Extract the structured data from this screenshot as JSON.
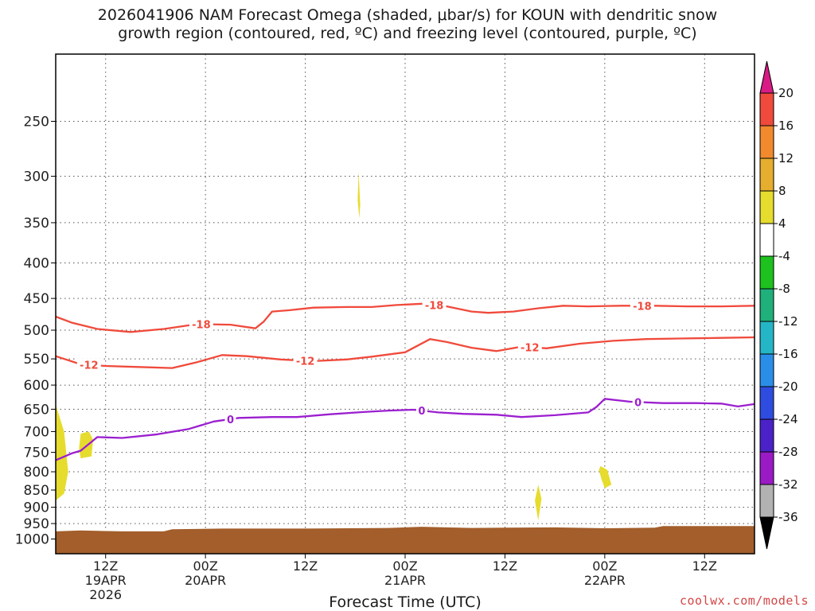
{
  "title": {
    "line1": "2026041906 NAM Forecast Omega (shaded, μbar/s) for KOUN with dendritic snow",
    "line2": "growth region (contoured, red, ºC) and freezing level (contoured, purple, ºC)"
  },
  "xlabel": "Forecast Time (UTC)",
  "credit": "coolwx.com/models",
  "chart_data": {
    "type": "area",
    "x_unit": "forecast hour from 2026041906",
    "xlim": [
      0,
      84
    ],
    "y_unit": "hPa",
    "ylim": [
      1050,
      200
    ],
    "y_scale": "log",
    "y_ticks": [
      250,
      300,
      350,
      400,
      450,
      500,
      550,
      600,
      650,
      700,
      750,
      800,
      850,
      900,
      950,
      1000
    ],
    "x_ticks": [
      {
        "x": 6,
        "label": "12Z",
        "sub1": "19APR",
        "sub2": "2026"
      },
      {
        "x": 18,
        "label": "00Z",
        "sub1": "20APR",
        "sub2": ""
      },
      {
        "x": 30,
        "label": "12Z",
        "sub1": "",
        "sub2": ""
      },
      {
        "x": 42,
        "label": "00Z",
        "sub1": "21APR",
        "sub2": ""
      },
      {
        "x": 54,
        "label": "12Z",
        "sub1": "",
        "sub2": ""
      },
      {
        "x": 66,
        "label": "00Z",
        "sub1": "22APR",
        "sub2": ""
      },
      {
        "x": 78,
        "label": "12Z",
        "sub1": "",
        "sub2": ""
      }
    ],
    "grid": true,
    "series": [
      {
        "name": "-18",
        "color": "#f04a3c",
        "label_positions": [
          17.5,
          45.5,
          70.5
        ],
        "points": [
          [
            0,
            478
          ],
          [
            2,
            488
          ],
          [
            5,
            498
          ],
          [
            9,
            503
          ],
          [
            13,
            498
          ],
          [
            17,
            490
          ],
          [
            21,
            491
          ],
          [
            24,
            497
          ],
          [
            25,
            486
          ],
          [
            26,
            470
          ],
          [
            28,
            468
          ],
          [
            31,
            464
          ],
          [
            35,
            463
          ],
          [
            38,
            463
          ],
          [
            41,
            460
          ],
          [
            44,
            458
          ],
          [
            47,
            462
          ],
          [
            50,
            470
          ],
          [
            52,
            472
          ],
          [
            55,
            470
          ],
          [
            58,
            465
          ],
          [
            61,
            461
          ],
          [
            64,
            462
          ],
          [
            68,
            461
          ],
          [
            72,
            461
          ],
          [
            76,
            462
          ],
          [
            80,
            462
          ],
          [
            84,
            461
          ]
        ]
      },
      {
        "name": "-12",
        "color": "#f04a3c",
        "label_positions": [
          4,
          30,
          57
        ],
        "points": [
          [
            0,
            545
          ],
          [
            3,
            560
          ],
          [
            6,
            563
          ],
          [
            10,
            565
          ],
          [
            14,
            567
          ],
          [
            17,
            556
          ],
          [
            20,
            543
          ],
          [
            23,
            545
          ],
          [
            27,
            551
          ],
          [
            31,
            554
          ],
          [
            35,
            551
          ],
          [
            38,
            546
          ],
          [
            42,
            538
          ],
          [
            45,
            515
          ],
          [
            47,
            520
          ],
          [
            50,
            530
          ],
          [
            53,
            536
          ],
          [
            56,
            528
          ],
          [
            59,
            531
          ],
          [
            63,
            523
          ],
          [
            67,
            518
          ],
          [
            71,
            515
          ],
          [
            75,
            514
          ],
          [
            80,
            513
          ],
          [
            84,
            512
          ]
        ]
      },
      {
        "name": "0",
        "color": "#9b1fcf",
        "label_positions": [
          21,
          44,
          70
        ],
        "points": [
          [
            0,
            770
          ],
          [
            2,
            752
          ],
          [
            3,
            746
          ],
          [
            5,
            713
          ],
          [
            8,
            715
          ],
          [
            12,
            707
          ],
          [
            16,
            694
          ],
          [
            19,
            677
          ],
          [
            22,
            669
          ],
          [
            26,
            667
          ],
          [
            29,
            667
          ],
          [
            33,
            661
          ],
          [
            37,
            656
          ],
          [
            40,
            653
          ],
          [
            43,
            651
          ],
          [
            46,
            657
          ],
          [
            49,
            660
          ],
          [
            53,
            662
          ],
          [
            56,
            667
          ],
          [
            60,
            663
          ],
          [
            64,
            657
          ],
          [
            65,
            645
          ],
          [
            66,
            628
          ],
          [
            69,
            634
          ],
          [
            73,
            637
          ],
          [
            77,
            637
          ],
          [
            80,
            638
          ],
          [
            82,
            644
          ],
          [
            84,
            639
          ]
        ]
      }
    ],
    "omega_shaded": [
      {
        "range": "4 to 8",
        "color": "#e6dc2e",
        "points": [
          [
            0,
            640
          ],
          [
            1,
            700
          ],
          [
            1.5,
            800
          ],
          [
            1,
            860
          ],
          [
            0,
            880
          ]
        ]
      },
      {
        "range": "4 to 8",
        "color": "#e6dc2e",
        "points": [
          [
            3,
            705
          ],
          [
            4,
            700
          ],
          [
            4.5,
            720
          ],
          [
            4.3,
            760
          ],
          [
            3,
            765
          ],
          [
            2.8,
            740
          ]
        ]
      },
      {
        "range": "4 to 8",
        "color": "#e6dc2e",
        "points": [
          [
            36.4,
            295
          ],
          [
            36.6,
            330
          ],
          [
            36.5,
            345
          ],
          [
            36.3,
            325
          ]
        ]
      },
      {
        "range": "4 to 8",
        "color": "#e6dc2e",
        "points": [
          [
            58,
            835
          ],
          [
            58.4,
            875
          ],
          [
            58,
            940
          ],
          [
            57.6,
            880
          ]
        ]
      },
      {
        "range": "4 to 8",
        "color": "#e6dc2e",
        "points": [
          [
            65.5,
            785
          ],
          [
            66.3,
            795
          ],
          [
            66.8,
            835
          ],
          [
            66,
            845
          ],
          [
            65.6,
            820
          ],
          [
            65.3,
            795
          ]
        ]
      }
    ],
    "terrain": {
      "color": "#a35e2b",
      "points": [
        [
          0,
          975
        ],
        [
          3,
          972
        ],
        [
          8,
          975
        ],
        [
          13,
          975
        ],
        [
          14,
          968
        ],
        [
          20,
          966
        ],
        [
          30,
          966
        ],
        [
          40,
          964
        ],
        [
          44,
          960
        ],
        [
          50,
          964
        ],
        [
          54,
          963
        ],
        [
          60,
          962
        ],
        [
          66,
          965
        ],
        [
          72,
          963
        ],
        [
          73,
          958
        ],
        [
          84,
          958
        ]
      ]
    },
    "colorbar": {
      "labels": [
        "20",
        "16",
        "12",
        "8",
        "4",
        "-4",
        "-8",
        "-12",
        "-16",
        "-20",
        "-24",
        "-28",
        "-32",
        "-36"
      ],
      "colors": [
        "#d81b85",
        "#f04a3c",
        "#f28a2d",
        "#e6ae2e",
        "#e6dc2e",
        "#ffffff",
        "#1ec21e",
        "#1fb07c",
        "#24b6c6",
        "#2a8ee8",
        "#2f4ce0",
        "#4b22c8",
        "#9a1ac6",
        "#b2b2b2",
        "#000000"
      ]
    }
  }
}
